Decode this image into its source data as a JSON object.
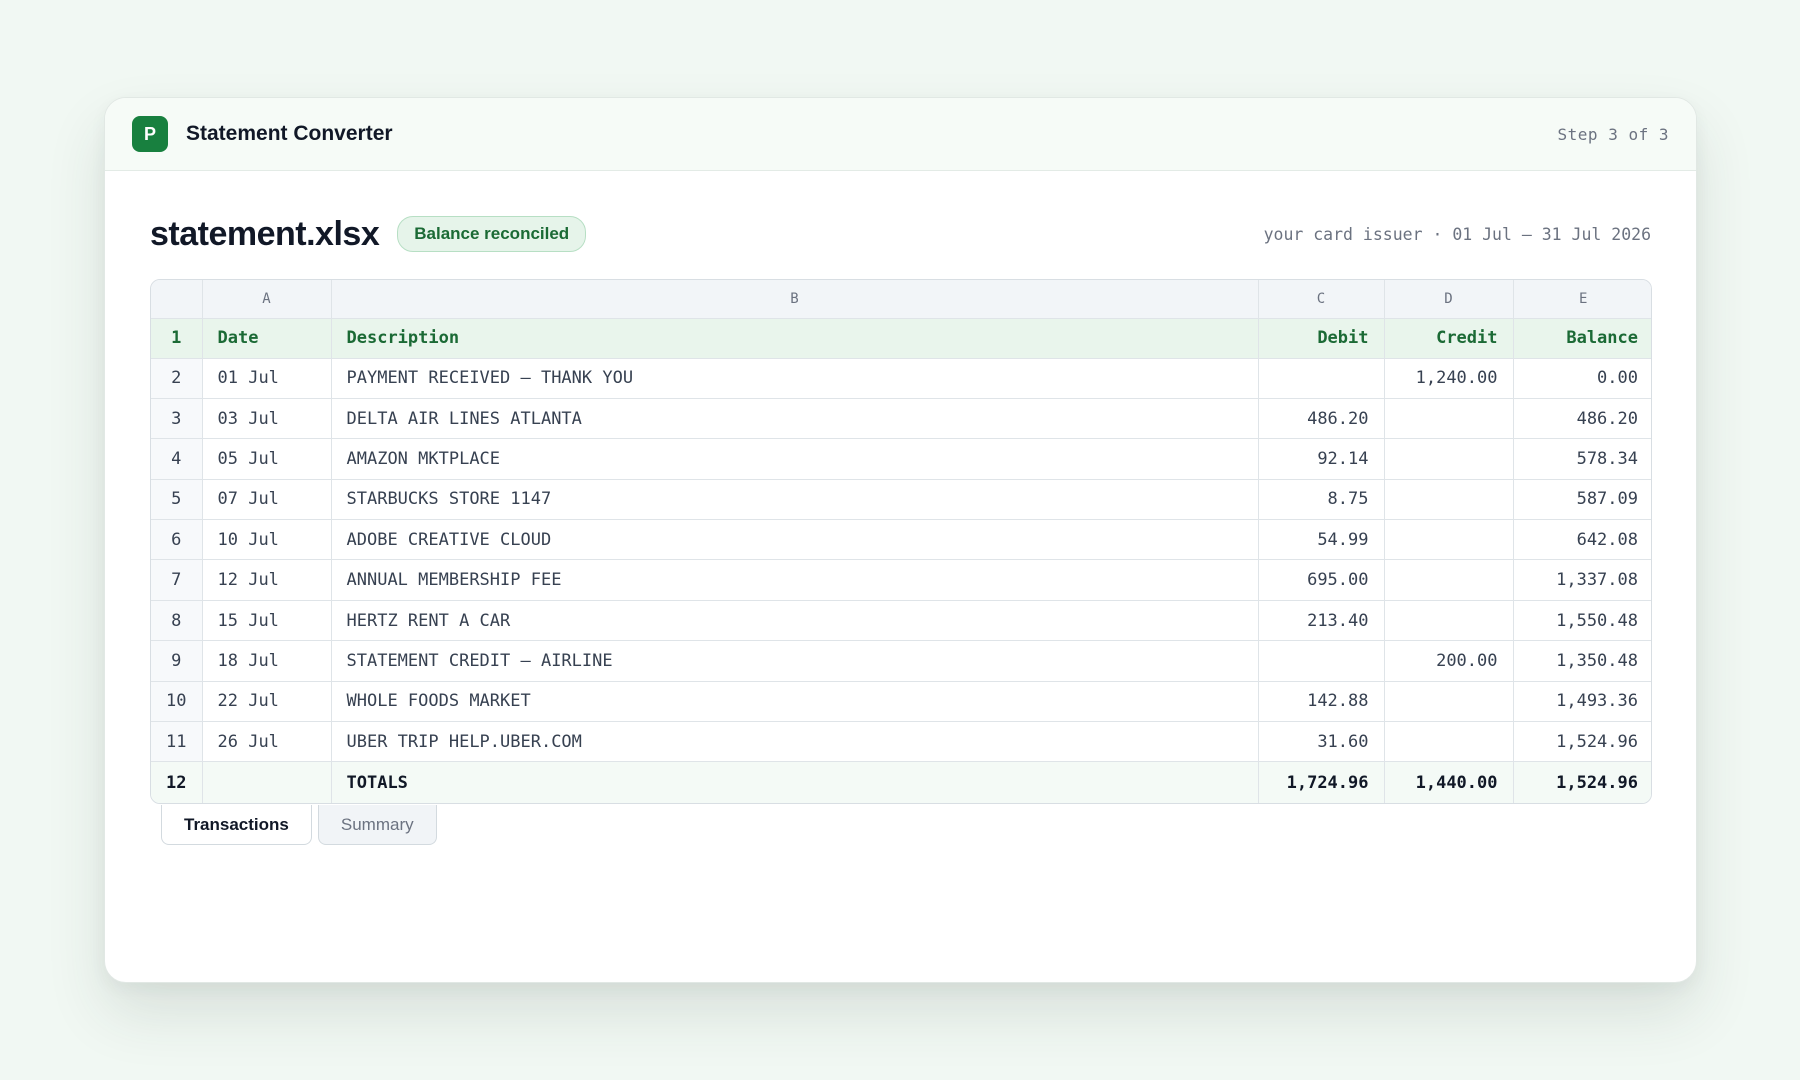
{
  "app": {
    "logo_letter": "P",
    "title": "Statement Converter",
    "step": "Step 3 of 3"
  },
  "document": {
    "filename": "statement.xlsx",
    "badge": "Balance reconciled",
    "meta": "your card issuer · 01 Jul – 31 Jul 2026"
  },
  "sheet": {
    "column_letters": [
      "A",
      "B",
      "C",
      "D",
      "E"
    ],
    "header_row": {
      "num": "1",
      "date": "Date",
      "description": "Description",
      "debit": "Debit",
      "credit": "Credit",
      "balance": "Balance"
    },
    "rows": [
      {
        "num": "2",
        "date": "01 Jul",
        "description": "PAYMENT RECEIVED — THANK YOU",
        "debit": "",
        "credit": "1,240.00",
        "balance": "0.00"
      },
      {
        "num": "3",
        "date": "03 Jul",
        "description": "DELTA AIR LINES ATLANTA",
        "debit": "486.20",
        "credit": "",
        "balance": "486.20"
      },
      {
        "num": "4",
        "date": "05 Jul",
        "description": "AMAZON MKTPLACE",
        "debit": "92.14",
        "credit": "",
        "balance": "578.34"
      },
      {
        "num": "5",
        "date": "07 Jul",
        "description": "STARBUCKS STORE 1147",
        "debit": "8.75",
        "credit": "",
        "balance": "587.09"
      },
      {
        "num": "6",
        "date": "10 Jul",
        "description": "ADOBE CREATIVE CLOUD",
        "debit": "54.99",
        "credit": "",
        "balance": "642.08"
      },
      {
        "num": "7",
        "date": "12 Jul",
        "description": "ANNUAL MEMBERSHIP FEE",
        "debit": "695.00",
        "credit": "",
        "balance": "1,337.08"
      },
      {
        "num": "8",
        "date": "15 Jul",
        "description": "HERTZ RENT A CAR",
        "debit": "213.40",
        "credit": "",
        "balance": "1,550.48"
      },
      {
        "num": "9",
        "date": "18 Jul",
        "description": "STATEMENT CREDIT — AIRLINE",
        "debit": "",
        "credit": "200.00",
        "balance": "1,350.48"
      },
      {
        "num": "10",
        "date": "22 Jul",
        "description": "WHOLE FOODS MARKET",
        "debit": "142.88",
        "credit": "",
        "balance": "1,493.36"
      },
      {
        "num": "11",
        "date": "26 Jul",
        "description": "UBER TRIP HELP.UBER.COM",
        "debit": "31.60",
        "credit": "",
        "balance": "1,524.96"
      }
    ],
    "totals": {
      "num": "12",
      "label": "TOTALS",
      "debit": "1,724.96",
      "credit": "1,440.00",
      "balance": "1,524.96"
    }
  },
  "tabs": [
    {
      "label": "Transactions",
      "active": true
    },
    {
      "label": "Summary",
      "active": false
    }
  ],
  "colors": {
    "brand": "#18803f",
    "debit": "#b02a45",
    "credit": "#1f7a3a"
  }
}
